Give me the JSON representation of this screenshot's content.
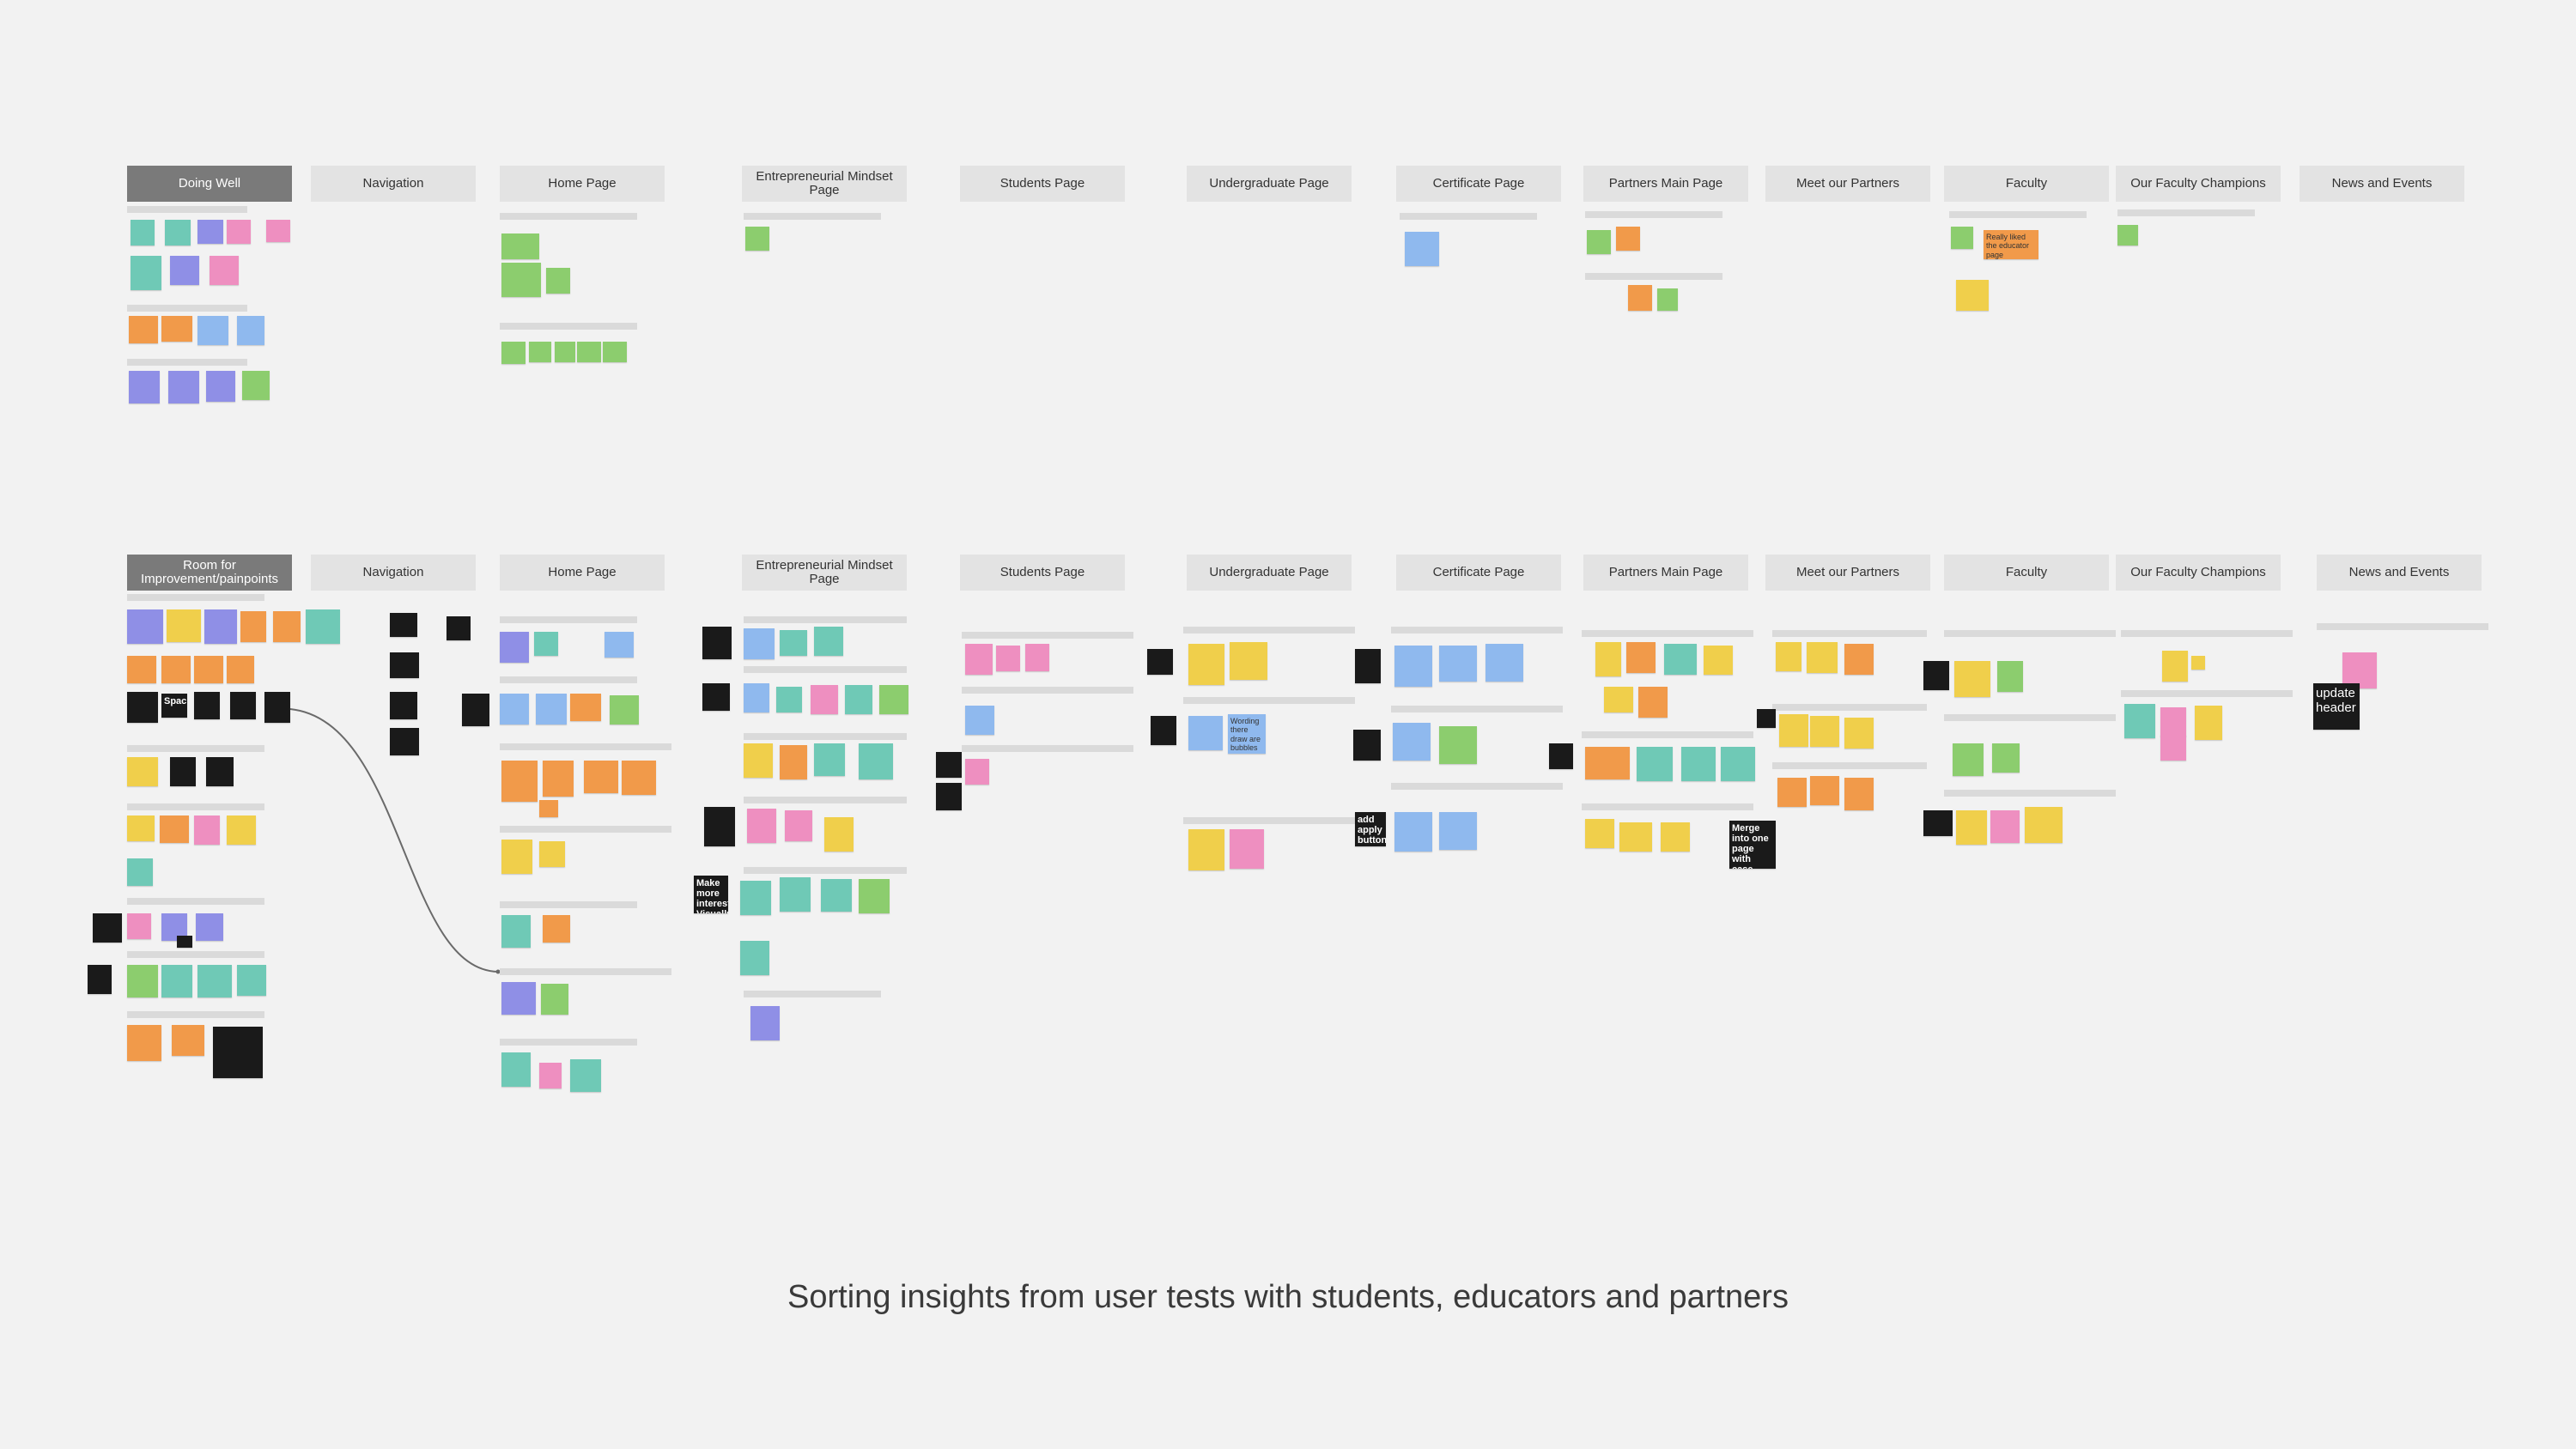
{
  "colors": {
    "yellow": "#f0cf4b",
    "orange": "#f19a4a",
    "green": "#8ccd6e",
    "teal": "#6fc9b6",
    "blue": "#8fb9ee",
    "purple": "#8f8fe6",
    "pink": "#ee8fc0",
    "black": "#1a1a1a"
  },
  "caption": "Sorting insights from user tests with students, educators and partners",
  "rows": [
    {
      "id": "doing-well",
      "headers": [
        "Doing Well",
        "Navigation",
        "Home Page",
        "Entrepreneurial Mindset Page",
        "Students Page",
        "Undergraduate Page",
        "Certificate Page",
        "Partners Main Page",
        "Meet our Partners",
        "Faculty",
        "Our Faculty Champions",
        "News and Events"
      ]
    },
    {
      "id": "room-for-improvement",
      "headers": [
        "Room for Improvement/painpoints",
        "Navigation",
        "Home Page",
        "Entrepreneurial Mindset Page",
        "Students Page",
        "Undergraduate Page",
        "Certificate Page",
        "Partners Main Page",
        "Meet our Partners",
        "Faculty",
        "Our Faculty Champions",
        "News and Events"
      ]
    }
  ],
  "readable_notes": {
    "faculty_top": "Really liked the educator page",
    "def_spacing": "Spacing",
    "make_more_visually": "Make more interesting Visually",
    "wording": "Wording there draw are bubbles",
    "add_apply_button": "add apply button",
    "merge_pages": "Merge into one page with case studies for partners",
    "update_header": "update header"
  }
}
